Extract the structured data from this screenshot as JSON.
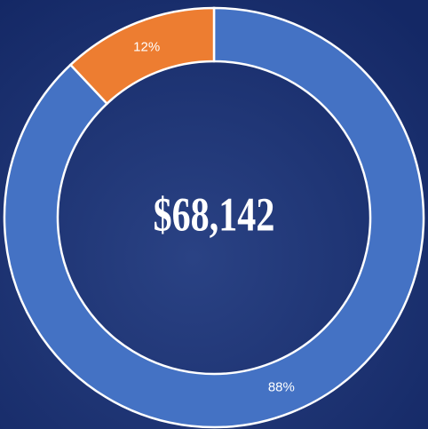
{
  "chart_data": {
    "type": "donut",
    "center_label": "$68,142",
    "values": [
      88,
      12
    ],
    "value_labels": [
      "88%",
      "12%"
    ],
    "colors": [
      "#4472c4",
      "#ed7d31"
    ]
  }
}
